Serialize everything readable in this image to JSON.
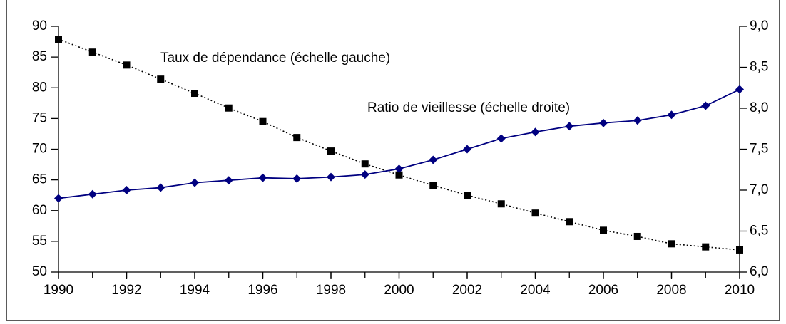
{
  "chart_data": {
    "type": "line",
    "x": [
      1990,
      1991,
      1992,
      1993,
      1994,
      1995,
      1996,
      1997,
      1998,
      1999,
      2000,
      2001,
      2002,
      2003,
      2004,
      2005,
      2006,
      2007,
      2008,
      2009,
      2010
    ],
    "series": [
      {
        "name": "Taux de dépendance",
        "color": "#000000",
        "axis": "y",
        "values": [
          87.9,
          85.8,
          83.7,
          81.4,
          79.1,
          76.7,
          74.5,
          71.9,
          69.7,
          67.6,
          65.8,
          64.1,
          62.5,
          61.1,
          59.6,
          58.2,
          56.8,
          55.8,
          54.6,
          54.1,
          53.6
        ]
      },
      {
        "name": "Ratio de vieillesse",
        "color": "#000080",
        "axis": "y2",
        "values": [
          6.9,
          6.95,
          7.0,
          7.03,
          7.09,
          7.12,
          7.15,
          7.14,
          7.16,
          7.19,
          7.26,
          7.37,
          7.5,
          7.63,
          7.71,
          7.78,
          7.82,
          7.85,
          7.92,
          8.03,
          8.23
        ]
      }
    ],
    "annotations": [
      "Taux de dépendance (échelle gauche)",
      "Ratio de vieillesse (échelle droite)"
    ],
    "xlim": [
      1990,
      2010
    ],
    "xticks": [
      1990,
      1992,
      1994,
      1996,
      1998,
      2000,
      2002,
      2004,
      2006,
      2008,
      2010
    ],
    "ylim": [
      50,
      90
    ],
    "yticks": [
      50,
      55,
      60,
      65,
      70,
      75,
      80,
      85,
      90
    ],
    "y2lim": [
      6,
      9
    ],
    "y2ticks": [
      {
        "value": 6,
        "label": "6,0"
      },
      {
        "value": 6.5,
        "label": "6,5"
      },
      {
        "value": 7,
        "label": "7,0"
      },
      {
        "value": 7.5,
        "label": "7,5"
      },
      {
        "value": 8,
        "label": "8,0"
      },
      {
        "value": 8.5,
        "label": "8,5"
      },
      {
        "value": 9,
        "label": "9,0"
      }
    ],
    "grid": false
  }
}
